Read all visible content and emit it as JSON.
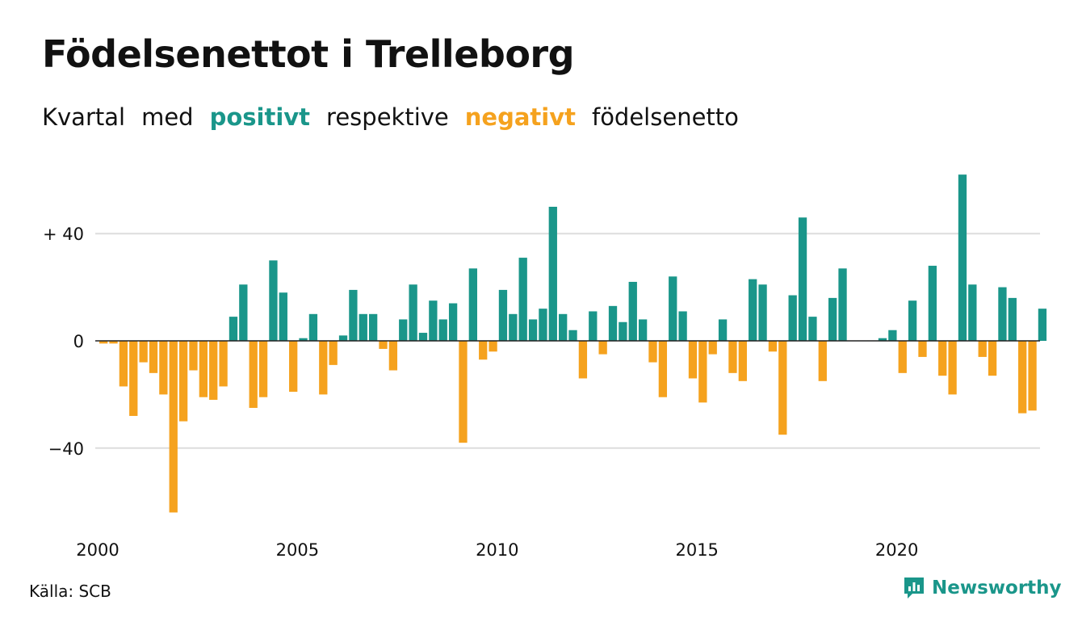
{
  "header": {
    "title": "Födelsenettot i Trelleborg",
    "subtitle_parts": [
      "Kvartal",
      "med",
      "positivt",
      "respektive",
      "negativt",
      "födelsenetto"
    ]
  },
  "footer": {
    "source": "Källa: SCB",
    "brand": "Newsworthy"
  },
  "colors": {
    "positive": "#1a968a",
    "negative": "#f5a21e",
    "grid": "#dddddd",
    "zero_line": "#222222"
  },
  "chart_data": {
    "type": "bar",
    "title": "Födelsenettot i Trelleborg",
    "xlabel": "",
    "ylabel": "",
    "x_start": "2000-Q1",
    "x_ticks": [
      "2000",
      "2005",
      "2010",
      "2015",
      "2020"
    ],
    "y_ticks": [
      40,
      0,
      -40
    ],
    "y_tick_labels": [
      "+ 40",
      "0",
      "−40"
    ],
    "ylim": [
      -66,
      64
    ],
    "grid": true,
    "values": [
      -1,
      -1,
      -17,
      -28,
      -8,
      -12,
      -20,
      -64,
      -30,
      -11,
      -21,
      -22,
      -17,
      9,
      21,
      -25,
      -21,
      30,
      18,
      -19,
      1,
      10,
      -20,
      -9,
      2,
      19,
      10,
      10,
      -3,
      -11,
      8,
      21,
      3,
      15,
      8,
      14,
      -38,
      27,
      -7,
      -4,
      19,
      10,
      31,
      8,
      12,
      50,
      10,
      4,
      -14,
      11,
      -5,
      13,
      7,
      22,
      8,
      -8,
      -21,
      24,
      11,
      -14,
      -23,
      -5,
      8,
      -12,
      -15,
      23,
      21,
      -4,
      -35,
      17,
      46,
      9,
      -15,
      16,
      27,
      0,
      0,
      0,
      1,
      4,
      -12,
      15,
      -6,
      28,
      -13,
      -20,
      62,
      21,
      -6,
      -13,
      20,
      16,
      -27,
      -26,
      12
    ]
  }
}
